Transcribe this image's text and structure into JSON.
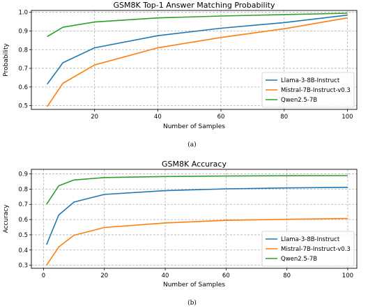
{
  "chart_data": [
    {
      "type": "line",
      "title": "GSM8K Top-1 Answer Matching Probability",
      "xlabel": "Number of Samples",
      "ylabel": "Probability",
      "xlim": [
        0,
        103
      ],
      "ylim": [
        0.48,
        1.01
      ],
      "xticks": [
        20,
        40,
        60,
        80,
        100
      ],
      "yticks": [
        0.5,
        0.6,
        0.7,
        0.8,
        0.9,
        1.0
      ],
      "ytick_labels": [
        "0.5",
        "0.6",
        "0.7",
        "0.8",
        "0.9",
        "1.0"
      ],
      "grid": true,
      "legend": "lower-right",
      "x": [
        5,
        10,
        20,
        40,
        60,
        80,
        100
      ],
      "series": [
        {
          "name": "Llama-3-8B-Instruct",
          "color": "#1f77b4",
          "values": [
            0.615,
            0.73,
            0.81,
            0.875,
            0.915,
            0.945,
            0.985
          ]
        },
        {
          "name": "Mistral-7B-Instruct-v0.3",
          "color": "#ff7f0e",
          "values": [
            0.495,
            0.62,
            0.718,
            0.81,
            0.865,
            0.912,
            0.97
          ]
        },
        {
          "name": "Qwen2.5-7B",
          "color": "#2ca02c",
          "values": [
            0.87,
            0.92,
            0.948,
            0.97,
            0.98,
            0.988,
            0.995
          ]
        }
      ],
      "caption": "(a)"
    },
    {
      "type": "line",
      "title": "GSM8K Accuracy",
      "xlabel": "Number of Samples",
      "ylabel": "Accuracy",
      "xlim": [
        -4,
        103
      ],
      "ylim": [
        0.28,
        0.93
      ],
      "xticks": [
        0,
        20,
        40,
        60,
        80,
        100
      ],
      "yticks": [
        0.3,
        0.4,
        0.5,
        0.6,
        0.7,
        0.8,
        0.9
      ],
      "ytick_labels": [
        "0.3",
        "0.4",
        "0.5",
        "0.6",
        "0.7",
        "0.8",
        "0.9"
      ],
      "grid": true,
      "legend": "lower-right",
      "x": [
        1,
        5,
        10,
        20,
        40,
        60,
        80,
        100
      ],
      "series": [
        {
          "name": "Llama-3-8B-Instruct",
          "color": "#1f77b4",
          "values": [
            0.435,
            0.63,
            0.715,
            0.765,
            0.79,
            0.802,
            0.808,
            0.812
          ]
        },
        {
          "name": "Mistral-7B-Instruct-v0.3",
          "color": "#ff7f0e",
          "values": [
            0.3,
            0.42,
            0.497,
            0.548,
            0.578,
            0.595,
            0.602,
            0.607
          ]
        },
        {
          "name": "Qwen2.5-7B",
          "color": "#2ca02c",
          "values": [
            0.7,
            0.822,
            0.86,
            0.876,
            0.883,
            0.886,
            0.888,
            0.889
          ]
        }
      ],
      "caption": "(b)"
    }
  ]
}
